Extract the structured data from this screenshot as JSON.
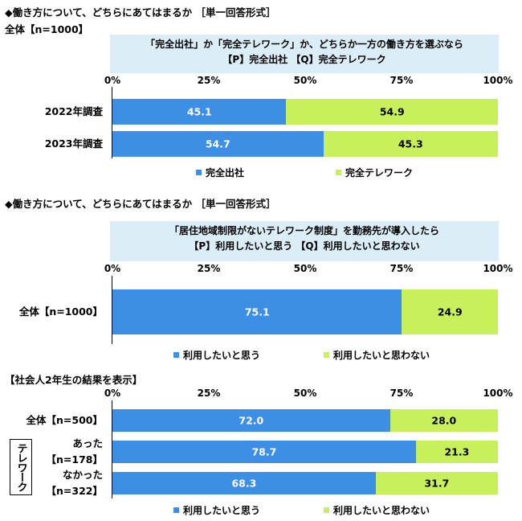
{
  "colors": {
    "complete_office": "#3d8ee5",
    "complete_remote": "#c8f05a",
    "use": "#3d8ee5",
    "not_use": "#c8f05a"
  },
  "section1": {
    "title": "◆働き方について、どちらにあてはまるか ［単一回答形式］",
    "subtitle": "全体【n=1000】",
    "question_line1": "「完全出社」か「完全テレワーク」か、どちらか一方の働き方を選ぶなら",
    "question_line2": "【P】完全出社 【Q】完全テレワーク",
    "legend": [
      "完全出社",
      "完全テレワーク"
    ]
  },
  "section2": {
    "title": "◆働き方について、どちらにあてはまるか ［単一回答形式］",
    "question_line1": "「居住地域制限がないテレワーク制度」を勤務先が導入したら",
    "question_line2": "【P】利用したいと思う 【Q】利用したいと思わない",
    "legend": [
      "利用したいと思う",
      "利用したいと思わない"
    ]
  },
  "section3": {
    "title": "【社会人2年生の結果を表示】",
    "group_label": "テレワーク",
    "legend": [
      "利用したいと思う",
      "利用したいと思わない"
    ]
  },
  "chart_data": [
    {
      "type": "bar",
      "orientation": "horizontal-stacked-100",
      "xticks": [
        "0%",
        "25%",
        "50%",
        "75%",
        "100%"
      ],
      "xlim": [
        0,
        100
      ],
      "categories": [
        "2022年調査",
        "2023年調査"
      ],
      "series": [
        {
          "name": "完全出社",
          "values": [
            45.1,
            54.7
          ]
        },
        {
          "name": "完全テレワーク",
          "values": [
            54.9,
            45.3
          ]
        }
      ]
    },
    {
      "type": "bar",
      "orientation": "horizontal-stacked-100",
      "xticks": [
        "0%",
        "25%",
        "50%",
        "75%",
        "100%"
      ],
      "xlim": [
        0,
        100
      ],
      "categories": [
        "全体【n=1000】"
      ],
      "series": [
        {
          "name": "利用したいと思う",
          "values": [
            75.1
          ]
        },
        {
          "name": "利用したいと思わない",
          "values": [
            24.9
          ]
        }
      ]
    },
    {
      "type": "bar",
      "orientation": "horizontal-stacked-100",
      "xticks": [
        "0%",
        "25%",
        "50%",
        "75%",
        "100%"
      ],
      "xlim": [
        0,
        100
      ],
      "categories": [
        "全体【n=500】",
        "あった【n=178】",
        "なかった【n=322】"
      ],
      "category_lines": [
        [
          "全体【n=500】"
        ],
        [
          "あった",
          "【n=178】"
        ],
        [
          "なかった",
          "【n=322】"
        ]
      ],
      "series": [
        {
          "name": "利用したいと思う",
          "values": [
            72.0,
            78.7,
            68.3
          ]
        },
        {
          "name": "利用したいと思わない",
          "values": [
            28.0,
            21.3,
            31.7
          ]
        }
      ]
    }
  ]
}
